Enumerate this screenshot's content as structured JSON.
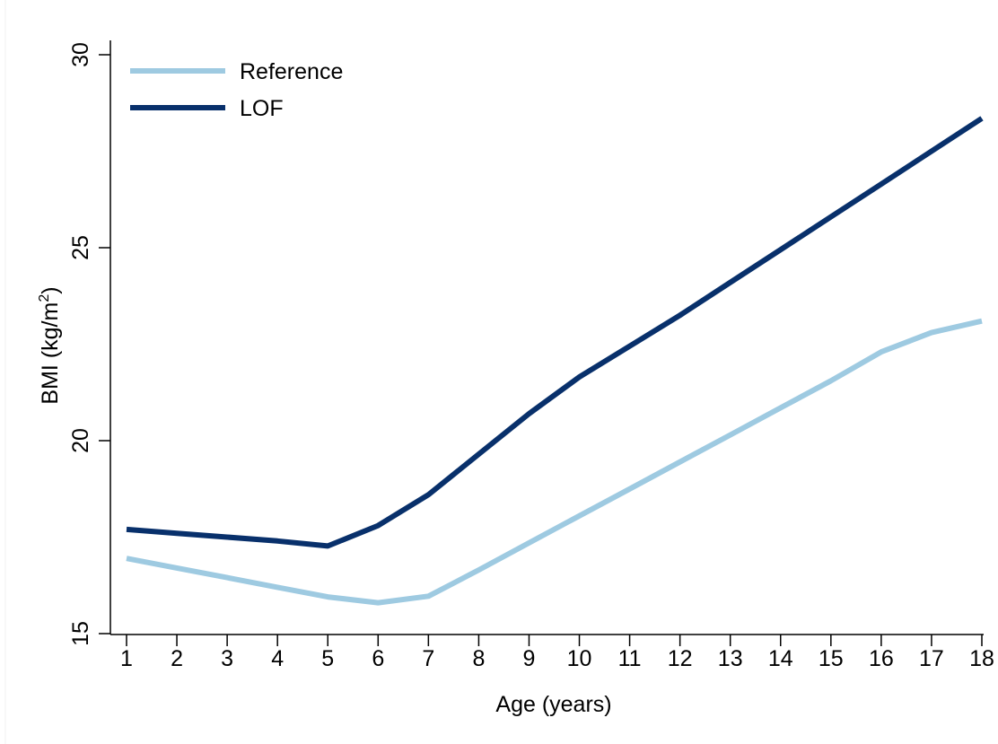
{
  "chart_data": {
    "type": "line",
    "x": [
      1,
      2,
      3,
      4,
      5,
      6,
      7,
      8,
      9,
      10,
      11,
      12,
      13,
      14,
      15,
      16,
      17,
      18
    ],
    "x_ticks": [
      "1",
      "2",
      "3",
      "4",
      "5",
      "6",
      "7",
      "8",
      "9",
      "10",
      "11",
      "12",
      "13",
      "14",
      "15",
      "16",
      "17",
      "18"
    ],
    "y_ticks": [
      "15",
      "20",
      "25",
      "30"
    ],
    "y_tick_values": [
      15,
      20,
      25,
      30
    ],
    "xlabel": "Age (years)",
    "ylabel_main": "BMI (kg/m",
    "ylabel_sup": "2",
    "ylabel_end": ")",
    "xlim": [
      1,
      18
    ],
    "ylim": [
      15,
      30
    ],
    "grid": false,
    "legend_position": "top-left",
    "series": [
      {
        "name": "Reference",
        "color": "#9ecae1",
        "values": [
          16.95,
          16.7,
          16.45,
          16.2,
          15.95,
          15.8,
          15.97,
          16.65,
          17.35,
          18.05,
          18.75,
          19.45,
          20.15,
          20.85,
          21.55,
          22.3,
          22.8,
          23.1
        ]
      },
      {
        "name": "LOF",
        "color": "#08306b",
        "values": [
          17.7,
          17.6,
          17.5,
          17.4,
          17.27,
          17.8,
          18.6,
          19.65,
          20.7,
          21.65,
          22.45,
          23.25,
          24.1,
          24.95,
          25.8,
          26.65,
          27.5,
          28.35
        ]
      }
    ]
  }
}
